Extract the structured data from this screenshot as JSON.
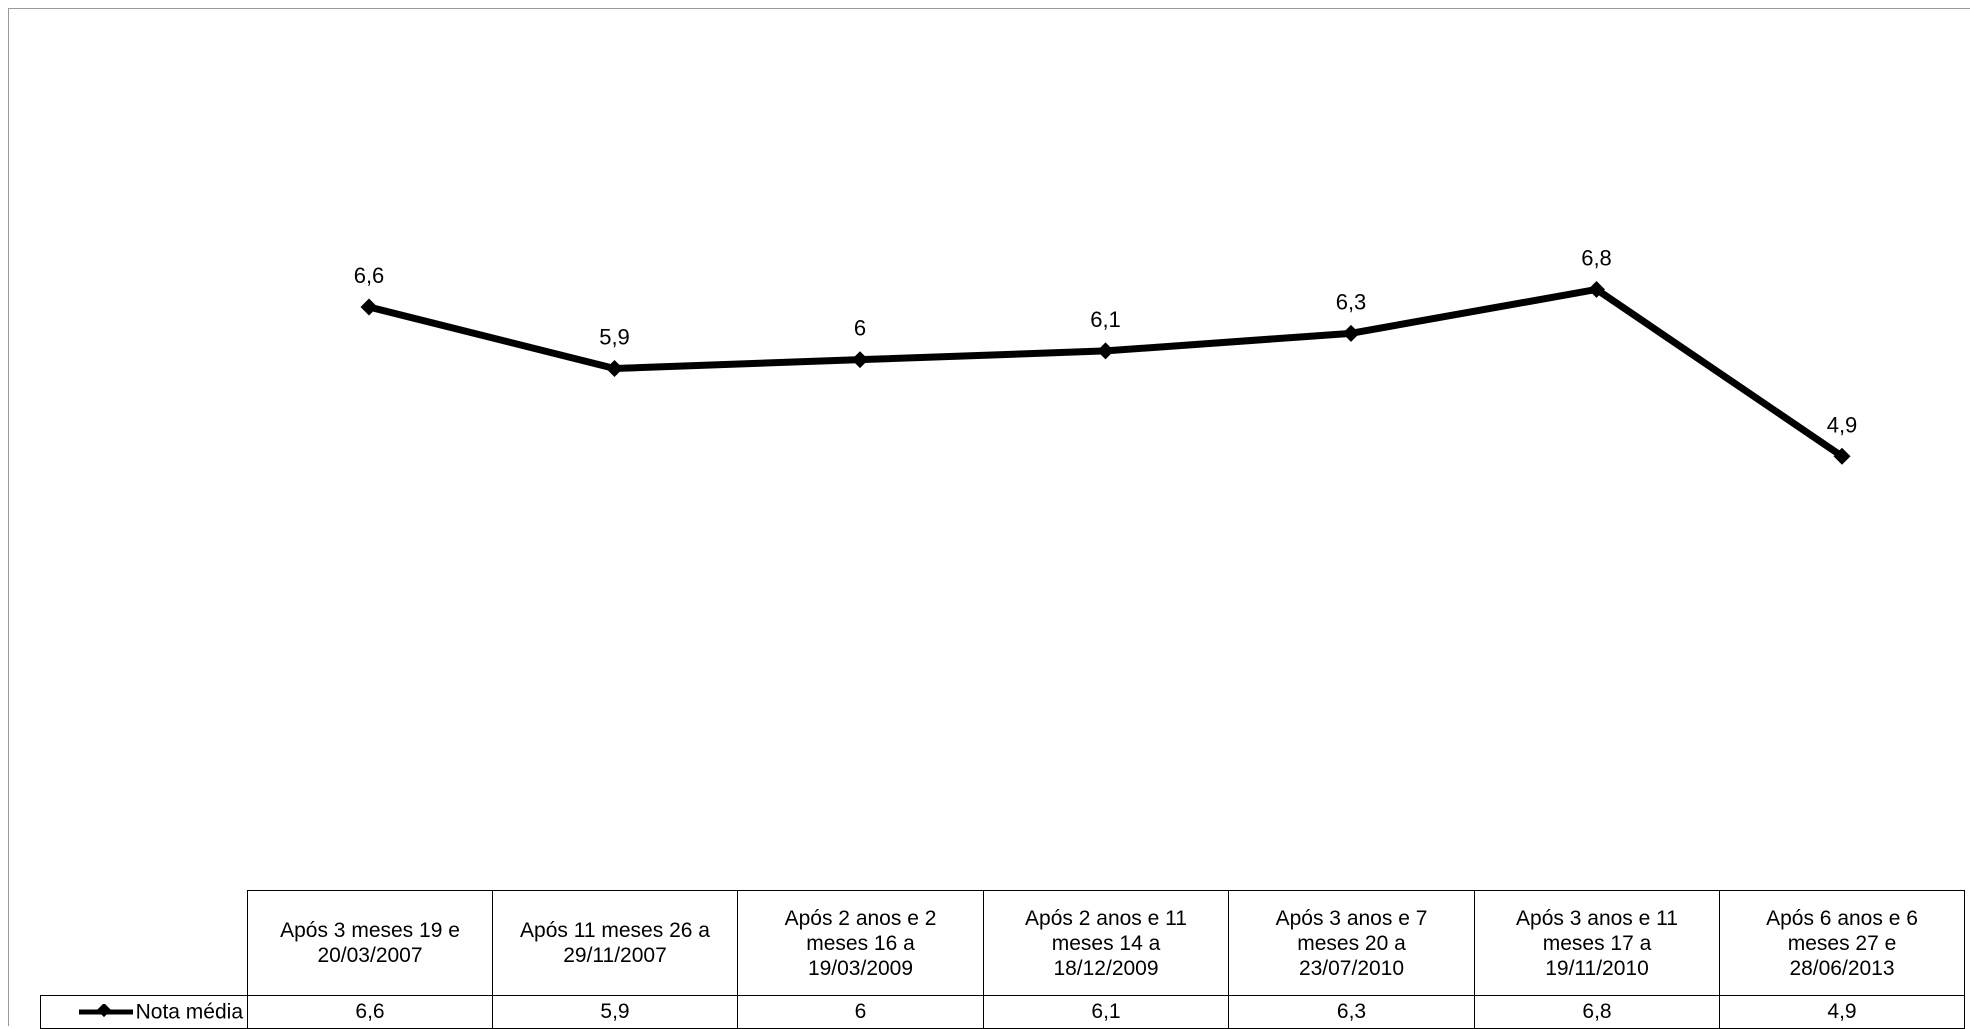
{
  "chart_data": {
    "type": "line",
    "categories": [
      "Após 3 meses 19 e 20/03/2007",
      "Após 11 meses 26 a 29/11/2007",
      "Após 2 anos e 2 meses 16 a 19/03/2009",
      "Após 2 anos e 11 meses 14 a 18/12/2009",
      "Após 3 anos e 7 meses 20 a 23/07/2010",
      "Após 3 anos e 11 meses 17 a 19/11/2010",
      "Após 6 anos e 6 meses 27 e 28/06/2013"
    ],
    "series": [
      {
        "name": "Nota média",
        "values": [
          6.6,
          5.9,
          6.0,
          6.1,
          6.3,
          6.8,
          4.9
        ],
        "color": "#000000",
        "marker": "diamond"
      }
    ],
    "data_labels": [
      "6,6",
      "5,9",
      "6",
      "6,1",
      "6,3",
      "6,8",
      "4,9"
    ],
    "value_axis": "hidden",
    "grid": false,
    "legend": "in data table"
  },
  "table": {
    "headers": [
      [
        "Após 3 meses 19 e",
        "20/03/2007"
      ],
      [
        "Após 11 meses 26 a",
        "29/11/2007"
      ],
      [
        "Após 2 anos e 2",
        "meses 16 a",
        "19/03/2009"
      ],
      [
        "Após 2 anos e 11",
        "meses 14 a",
        "18/12/2009"
      ],
      [
        "Após 3 anos e 7",
        "meses 20 a",
        "23/07/2010"
      ],
      [
        "Após 3 anos e 11",
        "meses 17 a",
        "19/11/2010"
      ],
      [
        "Após 6 anos e 6",
        "meses 27 e",
        "28/06/2013"
      ]
    ],
    "values": [
      "6,6",
      "5,9",
      "6",
      "6,1",
      "6,3",
      "6,8",
      "4,9"
    ]
  }
}
